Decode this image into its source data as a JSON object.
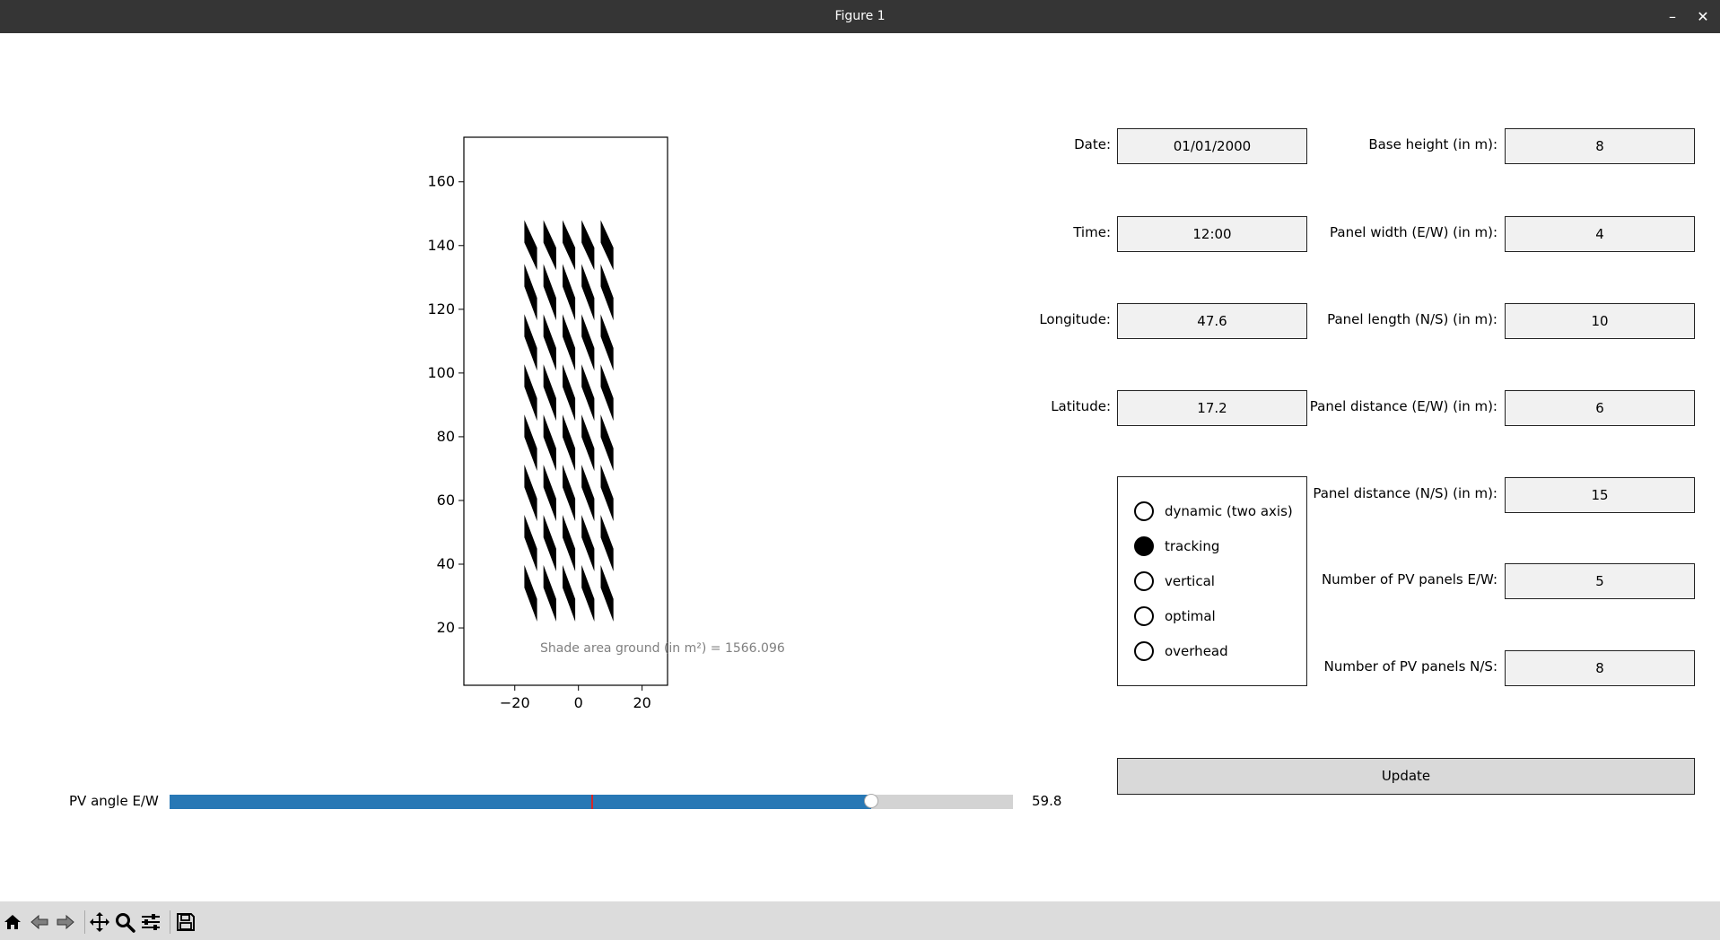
{
  "window": {
    "title": "Figure 1",
    "minimize_icon": "minimize-icon",
    "close_icon": "close-icon"
  },
  "plot": {
    "annotation": "Shade area ground (in m²) = 1566.096",
    "x_ticks": [
      "−20",
      "0",
      "20"
    ],
    "y_ticks": [
      "160",
      "140",
      "120",
      "100",
      "80",
      "60",
      "40",
      "20"
    ]
  },
  "chart_data": {
    "type": "scatter",
    "title": "",
    "xlabel": "",
    "ylabel": "",
    "xlim": [
      -36,
      28
    ],
    "ylim": [
      2,
      174
    ],
    "x_ticks": [
      -20,
      0,
      20
    ],
    "y_ticks": [
      20,
      40,
      60,
      80,
      100,
      120,
      140,
      160
    ],
    "annotation": "Shade area ground (in m²) = 1566.096",
    "shadow_columns_x": [
      -15,
      -9,
      -3,
      3,
      9
    ],
    "shadow_rows": 8,
    "shadow_y_range": [
      22,
      148
    ],
    "shadow_color": "#000000"
  },
  "form": {
    "left": [
      {
        "label": "Date:",
        "value": "01/01/2000"
      },
      {
        "label": "Time:",
        "value": "12:00"
      },
      {
        "label": "Longitude:",
        "value": "47.6"
      },
      {
        "label": "Latitude:",
        "value": "17.2"
      }
    ],
    "right": [
      {
        "label": "Base height (in m):",
        "value": "8"
      },
      {
        "label": "Panel width (E/W) (in m):",
        "value": "4"
      },
      {
        "label": "Panel length (N/S) (in m):",
        "value": "10"
      },
      {
        "label": "Panel distance (E/W) (in m):",
        "value": "6"
      },
      {
        "label": "Panel distance (N/S) (in m):",
        "value": "15"
      },
      {
        "label": "Number of PV panels E/W:",
        "value": "5"
      },
      {
        "label": "Number of PV panels N/S:",
        "value": "8"
      }
    ],
    "mode_options": [
      "dynamic (two axis)",
      "tracking",
      "vertical",
      "optimal",
      "overhead"
    ],
    "mode_selected": "tracking",
    "update_label": "Update"
  },
  "slider": {
    "label": "PV angle E/W",
    "value": "59.8",
    "fraction": 0.832,
    "init_fraction": 0.5,
    "fill_color": "#2878b5",
    "init_marker_color": "#d62728"
  },
  "toolbar": {
    "icons": [
      "home-icon",
      "back-icon",
      "forward-icon",
      "pan-icon",
      "zoom-icon",
      "configure-subplots-icon",
      "save-icon"
    ]
  }
}
